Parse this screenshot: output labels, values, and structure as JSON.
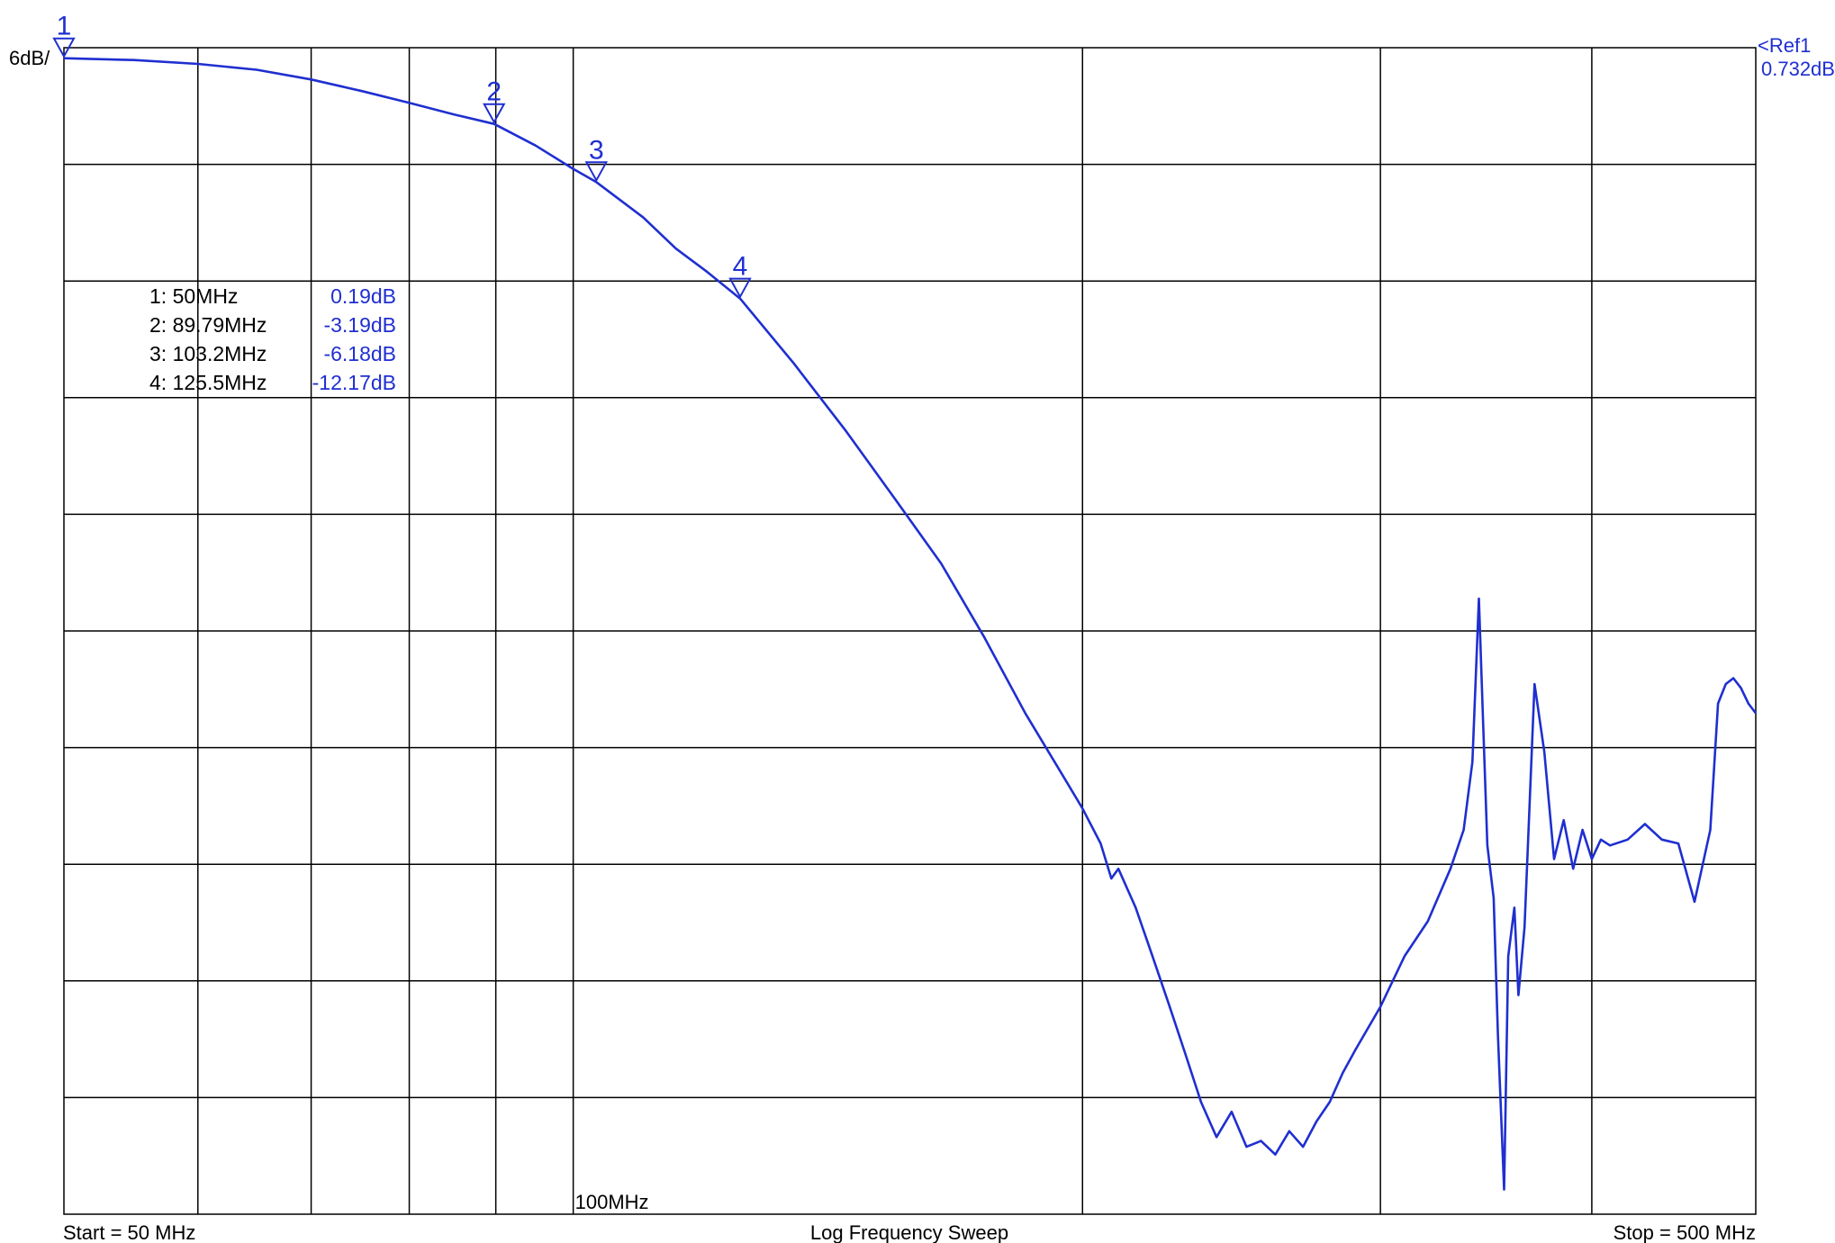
{
  "chart_data": {
    "type": "line",
    "xlabel": "Log Frequency Sweep",
    "x_scale": "log",
    "xlim_mhz": [
      50,
      500
    ],
    "start_label": "Start = 50 MHz",
    "stop_label": "Stop = 500 MHz",
    "x_tick_label": "100MHz",
    "scale_label": "6dB/",
    "ref_label": "<Ref1",
    "ref_value_label": "0.732dB",
    "ref_db": 0.732,
    "db_per_div": 6,
    "ylim_db": [
      -59.268,
      0.732
    ],
    "grid": true,
    "trace_color": "#1f2fd0",
    "grid_color": "#000000",
    "markers": [
      {
        "id": "1",
        "freq_mhz": 50,
        "value_db": 0.19,
        "freq_label": "1: 50MHz",
        "value_label": "0.19dB"
      },
      {
        "id": "2",
        "freq_mhz": 89.79,
        "value_db": -3.19,
        "freq_label": "2: 89.79MHz",
        "value_label": "-3.19dB"
      },
      {
        "id": "3",
        "freq_mhz": 103.2,
        "value_db": -6.18,
        "freq_label": "3: 103.2MHz",
        "value_label": "-6.18dB"
      },
      {
        "id": "4",
        "freq_mhz": 125.5,
        "value_db": -12.17,
        "freq_label": "4: 125.5MHz",
        "value_label": "-12.17dB"
      }
    ],
    "series": [
      {
        "x": [
          50,
          55,
          60,
          65,
          70,
          75,
          80,
          85,
          89.79,
          95,
          100,
          103.2,
          110,
          115,
          120,
          125.5,
          135,
          145,
          155,
          165,
          175,
          185,
          195,
          200,
          205,
          208,
          210,
          215,
          220,
          225,
          230,
          235,
          240,
          245,
          250,
          255,
          260,
          265,
          270,
          275,
          280,
          285,
          290,
          300,
          310,
          320,
          330,
          336,
          340,
          343,
          345,
          347,
          350,
          352,
          355,
          357,
          360,
          362,
          365,
          370,
          375,
          380,
          385,
          390,
          395,
          400,
          405,
          410,
          420,
          430,
          440,
          450,
          460,
          470,
          475,
          480,
          485,
          490,
          495,
          500
        ],
        "y": [
          0.19,
          0.1,
          -0.1,
          -0.4,
          -0.9,
          -1.5,
          -2.1,
          -2.7,
          -3.19,
          -4.3,
          -5.5,
          -6.18,
          -8.0,
          -9.6,
          -10.8,
          -12.17,
          -15.5,
          -19.0,
          -22.5,
          -25.8,
          -29.6,
          -33.5,
          -36.8,
          -38.4,
          -40.2,
          -42.0,
          -41.5,
          -43.5,
          -46.0,
          -48.5,
          -51.0,
          -53.5,
          -55.3,
          -54.0,
          -55.8,
          -55.5,
          -56.2,
          -55.0,
          -55.8,
          -54.5,
          -53.5,
          -52.0,
          -50.8,
          -48.6,
          -46.0,
          -44.2,
          -41.5,
          -39.5,
          -36.0,
          -27.6,
          -34.0,
          -40.3,
          -43.0,
          -50.0,
          -58.0,
          -46.0,
          -43.5,
          -48.0,
          -44.5,
          -32.0,
          -35.5,
          -41.0,
          -39.0,
          -41.5,
          -39.5,
          -41.0,
          -40.0,
          -40.3,
          -40.0,
          -39.2,
          -40.0,
          -40.2,
          -43.2,
          -39.5,
          -33.0,
          -32.0,
          -31.7,
          -32.2,
          -33.0,
          -33.5
        ]
      }
    ]
  }
}
